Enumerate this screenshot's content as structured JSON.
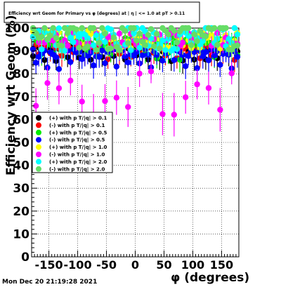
{
  "chart_data": {
    "type": "scatter",
    "title": "Efficiency wrt Geom for Primary vs φ (degrees) at | η | <= 1.0 at pT > 0.11",
    "xlabel": "φ (degrees)",
    "ylabel": "Efficiency wrt Geom (%)",
    "xlim": [
      -180,
      180
    ],
    "ylim": [
      0,
      100
    ],
    "xticks": [
      -150,
      -100,
      -50,
      0,
      50,
      100,
      150
    ],
    "yticks": [
      0,
      10,
      20,
      30,
      40,
      50,
      60,
      70,
      80,
      90,
      100
    ],
    "grid": true,
    "legend_position": "left-middle",
    "series": [
      {
        "name": "(+) with p T/|q| > 0.1",
        "color": "#000000",
        "base": 91,
        "dip_depth": 6,
        "spread": 1.5,
        "phase": 0
      },
      {
        "name": "(-) with p T/|q| > 0.1",
        "color": "#ff0000",
        "base": 92,
        "dip_depth": 6,
        "spread": 1.5,
        "phase": 9
      },
      {
        "name": "(+) with p T/|q| > 0.5",
        "color": "#00ee00",
        "base": 94,
        "dip_depth": 8,
        "spread": 2,
        "phase": 4
      },
      {
        "name": "(-) with p T/|q| > 0.5",
        "color": "#0000ff",
        "base": 89,
        "dip_depth": 7,
        "spread": 2,
        "phase": 13
      },
      {
        "name": "(+) with p T/|q| > 1.0",
        "color": "#ffff00",
        "base": 95,
        "dip_depth": 45,
        "spread": 4,
        "phase": 6
      },
      {
        "name": "(-) with p T/|q| > 1.0",
        "color": "#ff00ff",
        "base": 95,
        "dip_depth": 35,
        "spread": 3,
        "phase": 15
      },
      {
        "name": "(+) with p T/|q| > 2.0",
        "color": "#00ffff",
        "base": 96,
        "dip_depth": 75,
        "spread": 6,
        "phase": 2
      },
      {
        "name": "(-) with p T/|q| > 2.0",
        "color": "#66dd66",
        "base": 97,
        "dip_depth": 85,
        "spread": 7,
        "phase": 11
      }
    ]
  },
  "footer": {
    "timestamp": "Mon Dec 20 21:19:28 2021"
  }
}
